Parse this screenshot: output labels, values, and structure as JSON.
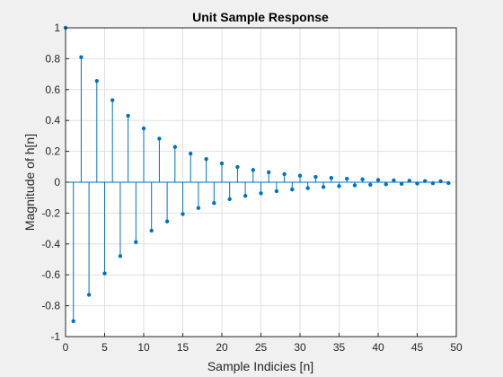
{
  "chart_data": {
    "type": "stem",
    "title": "Unit Sample Response",
    "xlabel": "Sample Indicies [n]",
    "ylabel": "Magnitude of h[n]",
    "xlim": [
      0,
      50
    ],
    "ylim": [
      -1,
      1
    ],
    "grid": true,
    "legend": "none",
    "series_color": "#0072BD",
    "x_ticks": [
      0,
      5,
      10,
      15,
      20,
      25,
      30,
      35,
      40,
      45,
      50
    ],
    "x_tick_labels": [
      "0",
      "5",
      "10",
      "15",
      "20",
      "25",
      "30",
      "35",
      "40",
      "45",
      "50"
    ],
    "y_ticks": [
      -1,
      -0.8,
      -0.6,
      -0.4,
      -0.2,
      0,
      0.2,
      0.4,
      0.6,
      0.8,
      1
    ],
    "y_tick_labels": [
      "-1",
      "-0.8",
      "-0.6",
      "-0.4",
      "-0.2",
      "0",
      "0.2",
      "0.4",
      "0.6",
      "0.8",
      "1"
    ],
    "x": [
      0,
      1,
      2,
      3,
      4,
      5,
      6,
      7,
      8,
      9,
      10,
      11,
      12,
      13,
      14,
      15,
      16,
      17,
      18,
      19,
      20,
      21,
      22,
      23,
      24,
      25,
      26,
      27,
      28,
      29,
      30,
      31,
      32,
      33,
      34,
      35,
      36,
      37,
      38,
      39,
      40,
      41,
      42,
      43,
      44,
      45,
      46,
      47,
      48,
      49
    ],
    "values": [
      1,
      -0.9,
      0.81,
      -0.729,
      0.6561,
      -0.5905,
      0.5314,
      -0.4783,
      0.4305,
      -0.3874,
      0.3487,
      -0.3138,
      0.2824,
      -0.2542,
      0.2288,
      -0.2059,
      0.1853,
      -0.1668,
      0.1501,
      -0.1351,
      0.1216,
      -0.1094,
      0.0985,
      -0.0886,
      0.0798,
      -0.0718,
      0.0646,
      -0.0581,
      0.0523,
      -0.0471,
      0.0424,
      -0.0382,
      0.0343,
      -0.0309,
      0.0278,
      -0.025,
      0.0225,
      -0.0203,
      0.0182,
      -0.0164,
      0.0148,
      -0.0133,
      0.012,
      -0.0108,
      0.0097,
      -0.0087,
      0.0079,
      -0.0071,
      0.0064,
      -0.0057
    ]
  }
}
